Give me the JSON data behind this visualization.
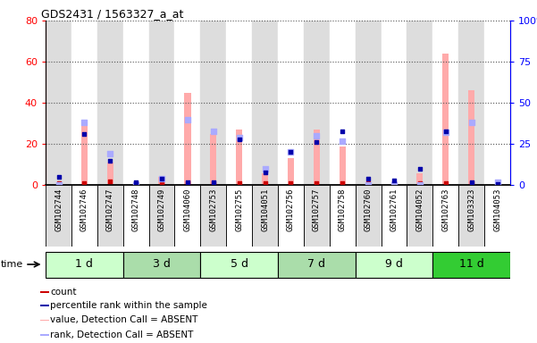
{
  "title": "GDS2431 / 1563327_a_at",
  "samples": [
    "GSM102744",
    "GSM102746",
    "GSM102747",
    "GSM102748",
    "GSM102749",
    "GSM104060",
    "GSM102753",
    "GSM102755",
    "GSM104051",
    "GSM102756",
    "GSM102757",
    "GSM102758",
    "GSM102760",
    "GSM102761",
    "GSM104052",
    "GSM102763",
    "GSM103323",
    "GSM104053"
  ],
  "groups": [
    {
      "label": "1 d",
      "indices": [
        0,
        1,
        2
      ],
      "color": "#ccffcc"
    },
    {
      "label": "3 d",
      "indices": [
        3,
        4,
        5
      ],
      "color": "#aaddaa"
    },
    {
      "label": "5 d",
      "indices": [
        6,
        7,
        8
      ],
      "color": "#ccffcc"
    },
    {
      "label": "7 d",
      "indices": [
        9,
        10,
        11
      ],
      "color": "#aaddaa"
    },
    {
      "label": "9 d",
      "indices": [
        12,
        13,
        14
      ],
      "color": "#ccffcc"
    },
    {
      "label": "11 d",
      "indices": [
        15,
        16,
        17
      ],
      "color": "#33cc33"
    }
  ],
  "count_values": [
    1,
    1,
    2,
    1,
    1,
    1,
    1,
    1,
    1,
    1,
    1,
    1,
    1,
    1,
    1,
    1,
    1,
    1
  ],
  "percentile_rank_values": [
    5,
    31,
    15,
    2,
    4,
    2,
    2,
    28,
    8,
    20,
    26,
    33,
    4,
    3,
    10,
    33,
    2,
    1
  ],
  "absent_value_values": [
    0,
    30,
    11,
    0,
    4,
    45,
    25,
    27,
    6,
    13,
    27,
    19,
    0,
    0,
    6,
    64,
    46,
    0
  ],
  "absent_rank_values": [
    0,
    38,
    19,
    0,
    4,
    40,
    33,
    29,
    10,
    20,
    30,
    27,
    0,
    0,
    0,
    32,
    38,
    2
  ],
  "ylim_left": [
    0,
    80
  ],
  "ylim_right": [
    0,
    100
  ],
  "yticks_left": [
    0,
    20,
    40,
    60,
    80
  ],
  "yticks_right": [
    0,
    25,
    50,
    75,
    100
  ],
  "ytick_labels_right": [
    "0",
    "25",
    "50",
    "75",
    "100%"
  ],
  "count_color": "#cc0000",
  "percentile_color": "#0000aa",
  "absent_value_color": "#ffaaaa",
  "absent_rank_color": "#aaaaff",
  "grid_color": "#555555",
  "sample_bg_even": "#dddddd",
  "sample_bg_odd": "#ffffff",
  "legend_items": [
    {
      "label": "count",
      "color": "#cc0000"
    },
    {
      "label": "percentile rank within the sample",
      "color": "#0000aa"
    },
    {
      "label": "value, Detection Call = ABSENT",
      "color": "#ffaaaa"
    },
    {
      "label": "rank, Detection Call = ABSENT",
      "color": "#aaaaff"
    }
  ]
}
